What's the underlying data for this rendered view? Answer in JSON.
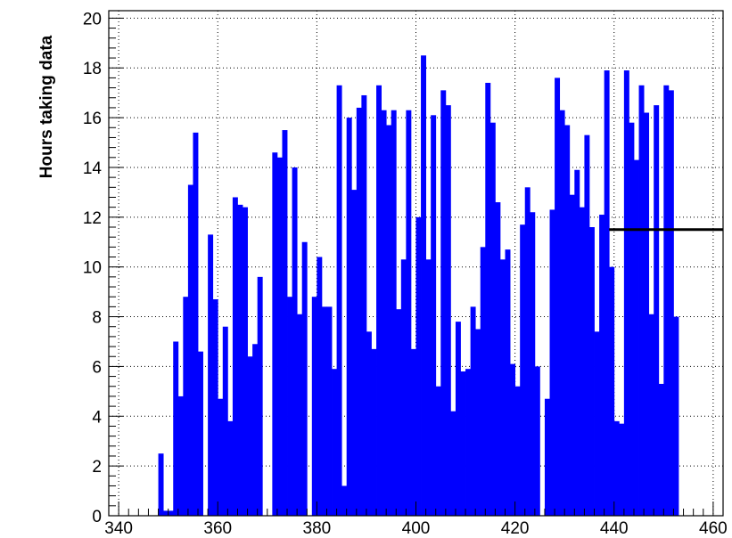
{
  "chart_data": {
    "type": "bar",
    "title": "",
    "xlabel": "",
    "ylabel": "Hours taking data",
    "xlim": [
      338,
      462
    ],
    "ylim": [
      0,
      20.3
    ],
    "grid": true,
    "bin_width": 1,
    "x_ticks": [
      340,
      360,
      380,
      400,
      420,
      440,
      460
    ],
    "y_ticks": [
      0,
      2,
      4,
      6,
      8,
      10,
      12,
      14,
      16,
      18,
      20
    ],
    "bin_starts": [
      348,
      349,
      350,
      351,
      352,
      353,
      354,
      355,
      356,
      357,
      358,
      359,
      360,
      361,
      362,
      363,
      364,
      365,
      366,
      367,
      368,
      369,
      370,
      371,
      372,
      373,
      374,
      375,
      376,
      377,
      378,
      379,
      380,
      381,
      382,
      383,
      384,
      385,
      386,
      387,
      388,
      389,
      390,
      391,
      392,
      393,
      394,
      395,
      396,
      397,
      398,
      399,
      400,
      401,
      402,
      403,
      404,
      405,
      406,
      407,
      408,
      409,
      410,
      411,
      412,
      413,
      414,
      415,
      416,
      417,
      418,
      419,
      420,
      421,
      422,
      423,
      424,
      425,
      426,
      427,
      428,
      429,
      430,
      431,
      432,
      433,
      434,
      435,
      436,
      437,
      438,
      439,
      440,
      441,
      442,
      443,
      444,
      445,
      446,
      447,
      448,
      449,
      450,
      451,
      452
    ],
    "values": [
      2.5,
      0.2,
      0.2,
      7.0,
      4.8,
      8.8,
      13.3,
      15.4,
      6.6,
      0,
      11.3,
      8.7,
      4.7,
      7.6,
      3.8,
      12.8,
      12.5,
      12.4,
      6.4,
      6.9,
      9.6,
      0,
      0,
      14.6,
      14.4,
      15.5,
      8.8,
      14.0,
      8.1,
      11.0,
      0,
      8.8,
      10.4,
      8.4,
      8.4,
      5.9,
      17.3,
      1.2,
      16.0,
      13.1,
      16.4,
      16.9,
      7.4,
      6.7,
      17.3,
      16.3,
      15.7,
      16.3,
      8.3,
      10.3,
      16.3,
      6.7,
      12.0,
      18.5,
      10.3,
      16.1,
      5.2,
      17.1,
      16.5,
      4.2,
      7.8,
      5.8,
      5.9,
      8.4,
      7.5,
      10.8,
      17.4,
      15.8,
      12.6,
      10.3,
      10.7,
      6.1,
      5.2,
      11.7,
      13.2,
      12.2,
      6.0,
      0,
      4.7,
      12.3,
      17.6,
      16.3,
      15.7,
      12.9,
      13.9,
      12.4,
      15.3,
      11.6,
      7.4,
      12.1,
      17.9,
      10.0,
      3.8,
      3.7,
      17.9,
      15.8,
      14.3,
      17.3,
      16.2,
      8.1,
      16.5,
      5.3,
      17.3,
      17.1,
      8.0
    ],
    "reference_line": {
      "y": 11.5,
      "x_start": 439,
      "x_end": 462
    },
    "colors": {
      "bars": "#0000ff",
      "reference_line": "#000000",
      "grid": "#000000",
      "axes": "#000000"
    }
  }
}
